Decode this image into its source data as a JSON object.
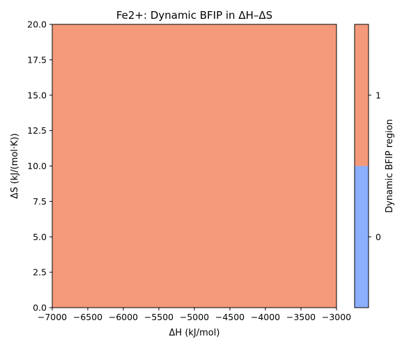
{
  "chart_data": {
    "type": "heatmap",
    "title": "Fe2+: Dynamic BFIP in ΔH–ΔS",
    "xlabel": "ΔH (kJ/mol)",
    "ylabel": "ΔS (kJ/(mol·K))",
    "xlim": [
      -7000,
      -3000
    ],
    "ylim": [
      0,
      20
    ],
    "x_ticks": [
      -7000,
      -6500,
      -6000,
      -5500,
      -5000,
      -4500,
      -4000,
      -3500,
      -3000
    ],
    "x_tick_labels": [
      "−7000",
      "−6500",
      "−6000",
      "−5500",
      "−5000",
      "−4500",
      "−4000",
      "−3500",
      "−3000"
    ],
    "y_ticks": [
      0,
      2.5,
      5,
      7.5,
      10,
      12.5,
      15,
      17.5,
      20
    ],
    "y_tick_labels": [
      "0.0",
      "2.5",
      "5.0",
      "7.5",
      "10.0",
      "12.5",
      "15.0",
      "17.5",
      "20.0"
    ],
    "regions": [
      {
        "x_range": [
          -7000,
          -3000
        ],
        "y_range": [
          0,
          20
        ],
        "value": 1
      }
    ],
    "colorbar": {
      "label": "Dynamic BFIP region",
      "levels": [
        {
          "value": 0,
          "label": "0",
          "color": "#8caffe"
        },
        {
          "value": 1,
          "label": "1",
          "color": "#f49a7b"
        }
      ]
    },
    "grid": false,
    "legend": "none"
  }
}
